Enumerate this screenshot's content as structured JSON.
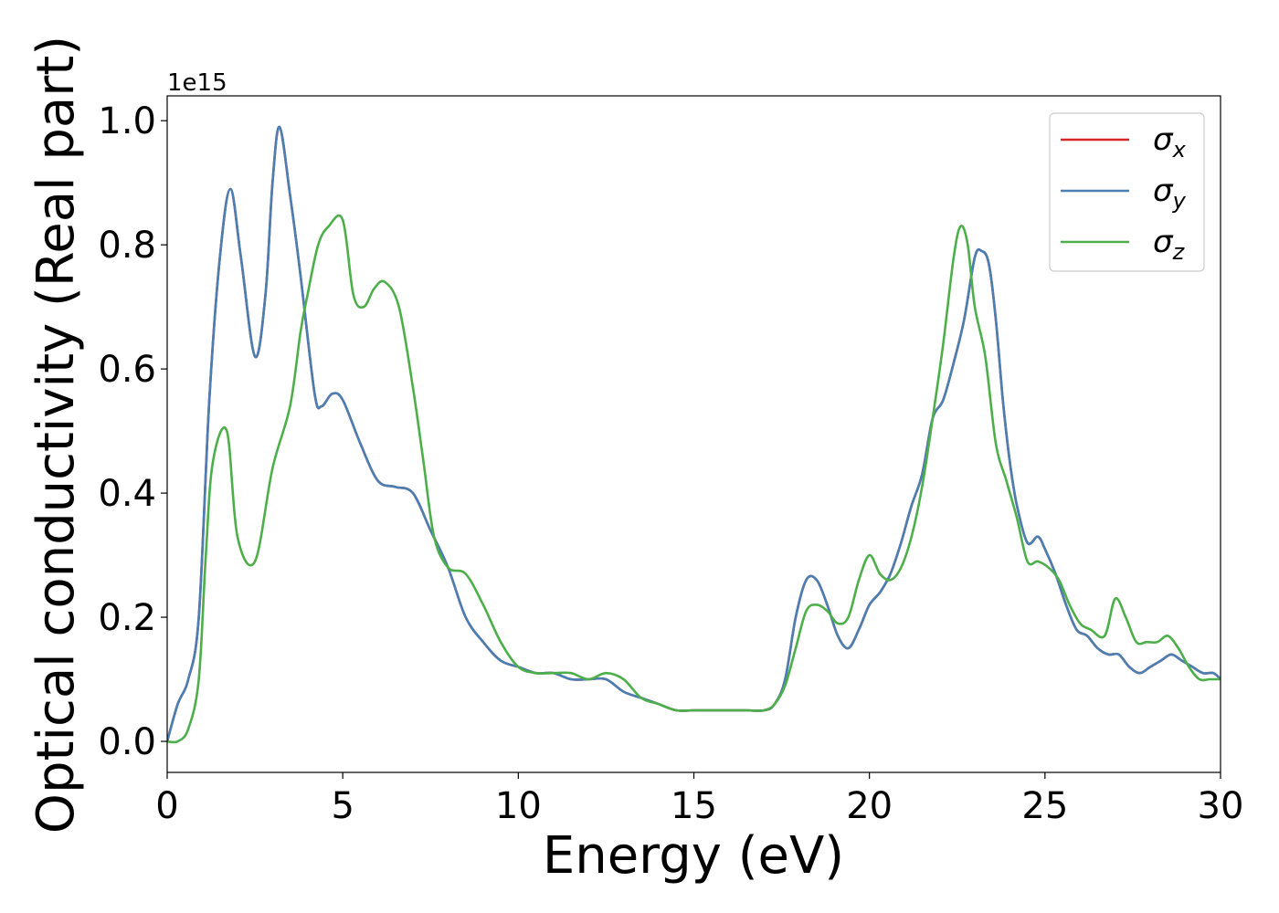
{
  "chart_data": {
    "type": "line",
    "title": "",
    "xlabel": "Energy (eV)",
    "ylabel": "Optical conductivity (Real part)",
    "y_offset_label": "1e15",
    "xlim": [
      0,
      30
    ],
    "ylim": [
      -0.05,
      1.04
    ],
    "xticks": [
      0,
      5,
      10,
      15,
      20,
      25,
      30
    ],
    "yticks": [
      0.0,
      0.2,
      0.4,
      0.6,
      0.8,
      1.0
    ],
    "xtick_labels": [
      "0",
      "5",
      "10",
      "15",
      "20",
      "25",
      "30"
    ],
    "ytick_labels": [
      "0.0",
      "0.2",
      "0.4",
      "0.6",
      "0.8",
      "1.0"
    ],
    "grid": false,
    "legend_position": "top-right",
    "series": [
      {
        "name": "σx",
        "symbol": "σ",
        "subscript": "x",
        "color": "#d62728",
        "x": [
          0,
          0.3,
          0.6,
          0.9,
          1.2,
          1.5,
          1.8,
          2.1,
          2.5,
          2.8,
          3.0,
          3.2,
          3.5,
          3.8,
          4.2,
          4.4,
          4.7,
          5.0,
          5.5,
          6.0,
          6.5,
          7.0,
          7.5,
          8.0,
          8.5,
          9.0,
          9.5,
          10.0,
          10.5,
          11.0,
          11.5,
          12.0,
          12.5,
          13.0,
          13.5,
          14.0,
          14.5,
          15.0,
          15.5,
          16.0,
          16.5,
          17.0,
          17.3,
          17.6,
          17.9,
          18.2,
          18.5,
          18.8,
          19.1,
          19.4,
          19.7,
          20.0,
          20.3,
          20.6,
          20.9,
          21.2,
          21.5,
          21.8,
          22.1,
          22.4,
          22.7,
          23.0,
          23.2,
          23.4,
          23.6,
          23.8,
          24.0,
          24.2,
          24.5,
          24.8,
          25.0,
          25.3,
          25.6,
          25.9,
          26.2,
          26.5,
          26.8,
          27.1,
          27.4,
          27.7,
          28.0,
          28.3,
          28.6,
          28.9,
          29.2,
          29.5,
          29.8,
          30.0
        ],
        "values": [
          0.0,
          0.06,
          0.1,
          0.2,
          0.55,
          0.78,
          0.89,
          0.78,
          0.62,
          0.72,
          0.9,
          0.99,
          0.88,
          0.75,
          0.56,
          0.54,
          0.56,
          0.55,
          0.48,
          0.42,
          0.41,
          0.4,
          0.34,
          0.28,
          0.2,
          0.16,
          0.13,
          0.12,
          0.11,
          0.11,
          0.1,
          0.1,
          0.1,
          0.08,
          0.07,
          0.06,
          0.05,
          0.05,
          0.05,
          0.05,
          0.05,
          0.05,
          0.06,
          0.1,
          0.2,
          0.26,
          0.26,
          0.22,
          0.17,
          0.15,
          0.18,
          0.22,
          0.24,
          0.27,
          0.32,
          0.38,
          0.43,
          0.52,
          0.55,
          0.61,
          0.68,
          0.78,
          0.79,
          0.77,
          0.68,
          0.55,
          0.45,
          0.38,
          0.32,
          0.33,
          0.31,
          0.27,
          0.22,
          0.18,
          0.17,
          0.15,
          0.14,
          0.14,
          0.12,
          0.11,
          0.12,
          0.13,
          0.14,
          0.13,
          0.12,
          0.11,
          0.11,
          0.1
        ]
      },
      {
        "name": "σy",
        "symbol": "σ",
        "subscript": "y",
        "color": "#4a7fb3",
        "x": [
          0,
          0.3,
          0.6,
          0.9,
          1.2,
          1.5,
          1.8,
          2.1,
          2.5,
          2.8,
          3.0,
          3.2,
          3.5,
          3.8,
          4.2,
          4.4,
          4.7,
          5.0,
          5.5,
          6.0,
          6.5,
          7.0,
          7.5,
          8.0,
          8.5,
          9.0,
          9.5,
          10.0,
          10.5,
          11.0,
          11.5,
          12.0,
          12.5,
          13.0,
          13.5,
          14.0,
          14.5,
          15.0,
          15.5,
          16.0,
          16.5,
          17.0,
          17.3,
          17.6,
          17.9,
          18.2,
          18.5,
          18.8,
          19.1,
          19.4,
          19.7,
          20.0,
          20.3,
          20.6,
          20.9,
          21.2,
          21.5,
          21.8,
          22.1,
          22.4,
          22.7,
          23.0,
          23.2,
          23.4,
          23.6,
          23.8,
          24.0,
          24.2,
          24.5,
          24.8,
          25.0,
          25.3,
          25.6,
          25.9,
          26.2,
          26.5,
          26.8,
          27.1,
          27.4,
          27.7,
          28.0,
          28.3,
          28.6,
          28.9,
          29.2,
          29.5,
          29.8,
          30.0
        ],
        "values": [
          0.0,
          0.06,
          0.1,
          0.2,
          0.55,
          0.78,
          0.89,
          0.78,
          0.62,
          0.72,
          0.9,
          0.99,
          0.88,
          0.75,
          0.56,
          0.54,
          0.56,
          0.55,
          0.48,
          0.42,
          0.41,
          0.4,
          0.34,
          0.28,
          0.2,
          0.16,
          0.13,
          0.12,
          0.11,
          0.11,
          0.1,
          0.1,
          0.1,
          0.08,
          0.07,
          0.06,
          0.05,
          0.05,
          0.05,
          0.05,
          0.05,
          0.05,
          0.06,
          0.1,
          0.2,
          0.26,
          0.26,
          0.22,
          0.17,
          0.15,
          0.18,
          0.22,
          0.24,
          0.27,
          0.32,
          0.38,
          0.43,
          0.52,
          0.55,
          0.61,
          0.68,
          0.78,
          0.79,
          0.77,
          0.68,
          0.55,
          0.45,
          0.38,
          0.32,
          0.33,
          0.31,
          0.27,
          0.22,
          0.18,
          0.17,
          0.15,
          0.14,
          0.14,
          0.12,
          0.11,
          0.12,
          0.13,
          0.14,
          0.13,
          0.12,
          0.11,
          0.11,
          0.1
        ]
      },
      {
        "name": "σz",
        "symbol": "σ",
        "subscript": "z",
        "color": "#4daf4a",
        "x": [
          0,
          0.3,
          0.6,
          0.9,
          1.1,
          1.3,
          1.7,
          2.0,
          2.5,
          3.0,
          3.5,
          3.8,
          4.0,
          4.3,
          4.6,
          5.0,
          5.3,
          5.6,
          5.9,
          6.2,
          6.6,
          7.0,
          7.3,
          7.6,
          8.0,
          8.5,
          9.0,
          9.5,
          10.0,
          10.5,
          11.0,
          11.5,
          12.0,
          12.5,
          13.0,
          13.5,
          14.0,
          14.5,
          15.0,
          15.5,
          16.0,
          16.5,
          17.0,
          17.3,
          17.6,
          17.9,
          18.2,
          18.5,
          18.8,
          19.1,
          19.4,
          19.7,
          20.0,
          20.3,
          20.6,
          20.9,
          21.2,
          21.5,
          21.8,
          22.1,
          22.4,
          22.6,
          22.8,
          23.0,
          23.3,
          23.6,
          23.9,
          24.2,
          24.5,
          24.8,
          25.1,
          25.4,
          25.7,
          26.0,
          26.3,
          26.7,
          27.0,
          27.3,
          27.6,
          27.9,
          28.2,
          28.5,
          28.8,
          29.1,
          29.4,
          29.7,
          30.0
        ],
        "values": [
          0.0,
          0.0,
          0.02,
          0.1,
          0.3,
          0.45,
          0.5,
          0.33,
          0.29,
          0.44,
          0.54,
          0.66,
          0.72,
          0.8,
          0.83,
          0.84,
          0.72,
          0.7,
          0.73,
          0.74,
          0.7,
          0.57,
          0.45,
          0.33,
          0.28,
          0.27,
          0.22,
          0.16,
          0.12,
          0.11,
          0.11,
          0.11,
          0.1,
          0.11,
          0.1,
          0.07,
          0.06,
          0.05,
          0.05,
          0.05,
          0.05,
          0.05,
          0.05,
          0.06,
          0.09,
          0.15,
          0.21,
          0.22,
          0.21,
          0.19,
          0.2,
          0.26,
          0.3,
          0.27,
          0.26,
          0.28,
          0.33,
          0.41,
          0.52,
          0.64,
          0.78,
          0.83,
          0.8,
          0.7,
          0.62,
          0.48,
          0.42,
          0.36,
          0.29,
          0.29,
          0.28,
          0.26,
          0.22,
          0.19,
          0.18,
          0.17,
          0.23,
          0.2,
          0.16,
          0.16,
          0.16,
          0.17,
          0.15,
          0.12,
          0.1,
          0.1,
          0.1
        ]
      }
    ]
  }
}
